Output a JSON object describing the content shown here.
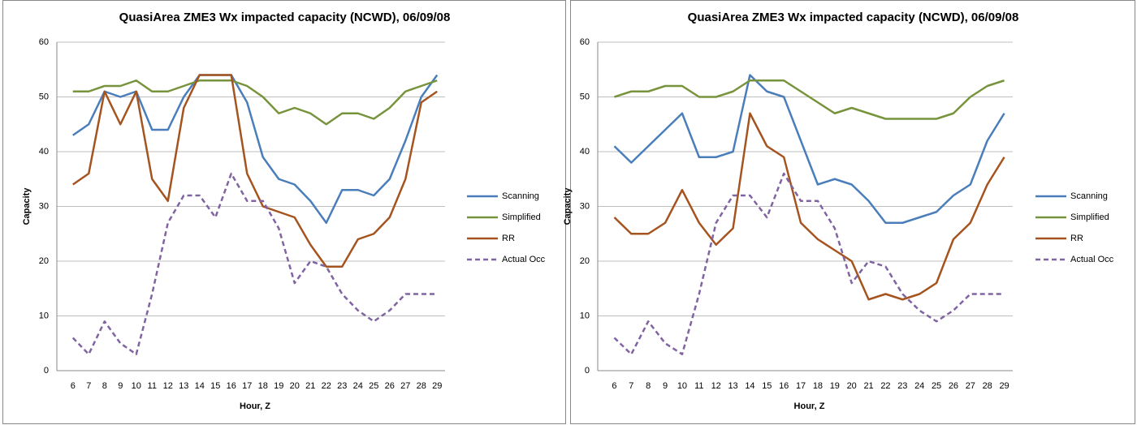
{
  "chart_data": [
    {
      "type": "line",
      "title": "QuasiArea ZME3 Wx impacted capacity (NCWD), 06/09/08",
      "x_label": "Hour, Z",
      "y_label": "Capacity",
      "categories": [
        6,
        7,
        8,
        9,
        10,
        11,
        12,
        13,
        14,
        15,
        16,
        17,
        18,
        19,
        20,
        21,
        22,
        23,
        24,
        25,
        26,
        27,
        28,
        29
      ],
      "ylim": [
        0,
        60
      ],
      "yticks": [
        0,
        10,
        20,
        30,
        40,
        50,
        60
      ],
      "grid": true,
      "legend": "right",
      "series": [
        {
          "name": "Scanning",
          "color": "#4a7ebb",
          "dashed": false,
          "values": [
            43,
            45,
            51,
            50,
            51,
            44,
            44,
            50,
            54,
            54,
            54,
            49,
            39,
            35,
            34,
            31,
            27,
            33,
            33,
            32,
            35,
            42,
            50,
            54
          ]
        },
        {
          "name": "Simplified",
          "color": "#77933c",
          "dashed": false,
          "values": [
            51,
            51,
            52,
            52,
            53,
            51,
            51,
            52,
            53,
            53,
            53,
            52,
            50,
            47,
            48,
            47,
            45,
            47,
            47,
            46,
            48,
            51,
            52,
            53
          ]
        },
        {
          "name": "RR",
          "color": "#a5541f",
          "dashed": false,
          "values": [
            34,
            36,
            51,
            45,
            51,
            35,
            31,
            48,
            54,
            54,
            54,
            36,
            30,
            29,
            28,
            23,
            19,
            19,
            24,
            25,
            28,
            35,
            49,
            51
          ]
        },
        {
          "name": "Actual Occ",
          "color": "#8064a2",
          "dashed": true,
          "values": [
            6,
            3,
            9,
            5,
            3,
            14,
            27,
            32,
            32,
            28,
            36,
            31,
            31,
            26,
            16,
            20,
            19,
            14,
            11,
            9,
            11,
            14,
            14,
            14
          ]
        }
      ]
    },
    {
      "type": "line",
      "title": "QuasiArea ZME3 Wx impacted capacity (NCWD), 06/09/08",
      "x_label": "Hour, Z",
      "y_label": "Capacity",
      "categories": [
        6,
        7,
        8,
        9,
        10,
        11,
        12,
        13,
        14,
        15,
        16,
        17,
        18,
        19,
        20,
        21,
        22,
        23,
        24,
        25,
        26,
        27,
        28,
        29
      ],
      "ylim": [
        0,
        60
      ],
      "yticks": [
        0,
        10,
        20,
        30,
        40,
        50,
        60
      ],
      "grid": true,
      "legend": "right",
      "series": [
        {
          "name": "Scanning",
          "color": "#4a7ebb",
          "dashed": false,
          "values": [
            41,
            38,
            41,
            44,
            47,
            39,
            39,
            40,
            54,
            51,
            50,
            42,
            34,
            35,
            34,
            31,
            27,
            27,
            28,
            29,
            32,
            34,
            42,
            47
          ]
        },
        {
          "name": "Simplified",
          "color": "#77933c",
          "dashed": false,
          "values": [
            50,
            51,
            51,
            52,
            52,
            50,
            50,
            51,
            53,
            53,
            53,
            51,
            49,
            47,
            48,
            47,
            46,
            46,
            46,
            46,
            47,
            50,
            52,
            53
          ]
        },
        {
          "name": "RR",
          "color": "#a5541f",
          "dashed": false,
          "values": [
            28,
            25,
            25,
            27,
            33,
            27,
            23,
            26,
            47,
            41,
            39,
            27,
            24,
            22,
            20,
            13,
            14,
            13,
            14,
            16,
            24,
            27,
            34,
            39
          ]
        },
        {
          "name": "Actual Occ",
          "color": "#8064a2",
          "dashed": true,
          "values": [
            6,
            3,
            9,
            5,
            3,
            14,
            27,
            32,
            32,
            28,
            36,
            31,
            31,
            26,
            16,
            20,
            19,
            14,
            11,
            9,
            11,
            14,
            14,
            14
          ]
        }
      ]
    }
  ]
}
